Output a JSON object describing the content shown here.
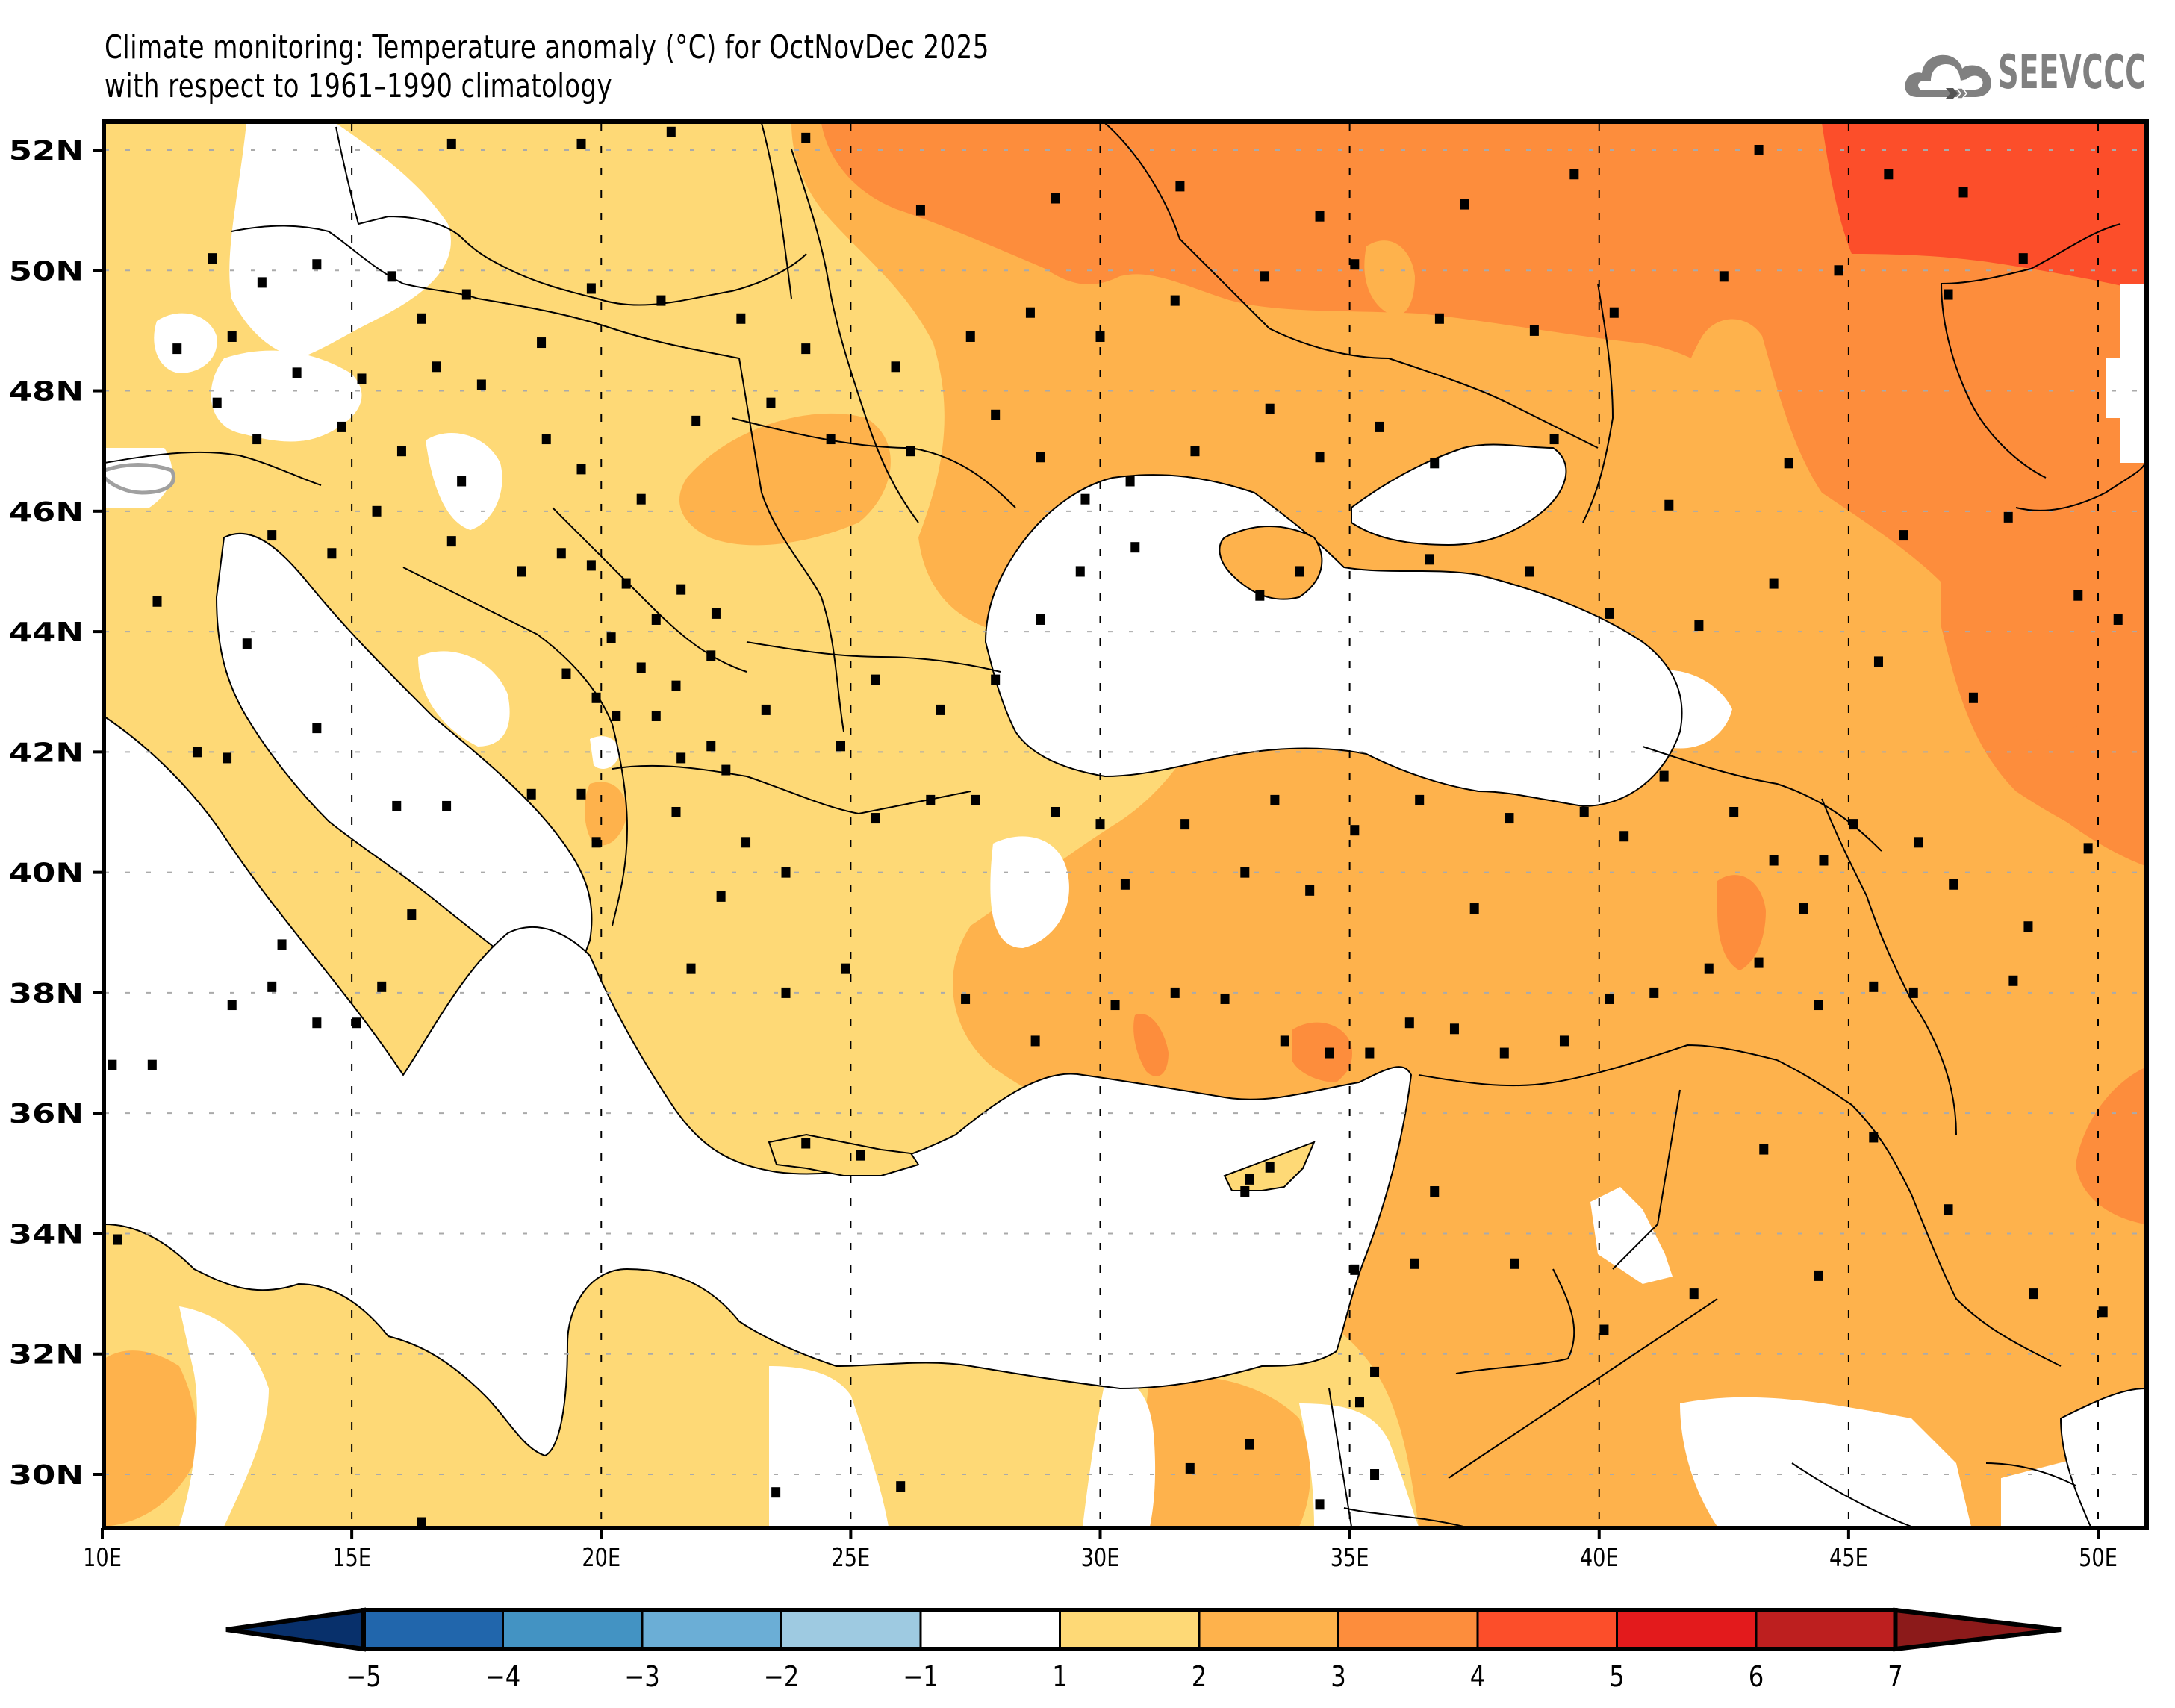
{
  "header": {
    "title_line1": "Climate monitoring: Temperature anomaly (°C) for OctNovDec 2025",
    "title_line2": "with respect to 1961–1990 climatology",
    "logo_text": "SEEVCCC",
    "logo_icon": "cloud-arrow-icon"
  },
  "map": {
    "lon_range": [
      10,
      51
    ],
    "lat_range": [
      29,
      52.5
    ],
    "lat_ticks": [
      "52N",
      "50N",
      "48N",
      "46N",
      "44N",
      "42N",
      "40N",
      "38N",
      "36N",
      "34N",
      "32N",
      "30N"
    ],
    "lat_values": [
      52,
      50,
      48,
      46,
      44,
      42,
      40,
      38,
      36,
      34,
      32,
      30
    ],
    "lon_ticks": [
      "10E",
      "15E",
      "20E",
      "25E",
      "30E",
      "35E",
      "40E",
      "45E",
      "50E"
    ],
    "lon_values": [
      10,
      15,
      20,
      25,
      30,
      35,
      40,
      45,
      50
    ],
    "colors": {
      "class_1_2": "#fed976",
      "class_2_3": "#feb24c",
      "class_3_4": "#fd8d3c",
      "class_4_5": "#fc4e2a",
      "none": "#ffffff",
      "border": "#000000",
      "station": "#000000",
      "grid": "#aaaaaa"
    }
  },
  "colorbar": {
    "labels": [
      "−5",
      "−4",
      "−3",
      "−2",
      "−1",
      "1",
      "2",
      "3",
      "4",
      "5",
      "6",
      "7"
    ],
    "under_color": "#08306b",
    "over_color": "#8c1a1a",
    "segments": [
      "#2166ac",
      "#4393c3",
      "#6baed6",
      "#9ecae1",
      "#ffffff",
      "#fed976",
      "#feb24c",
      "#fd8d3c",
      "#fc4e2a",
      "#e31a1c",
      "#bd1f1f"
    ]
  }
}
